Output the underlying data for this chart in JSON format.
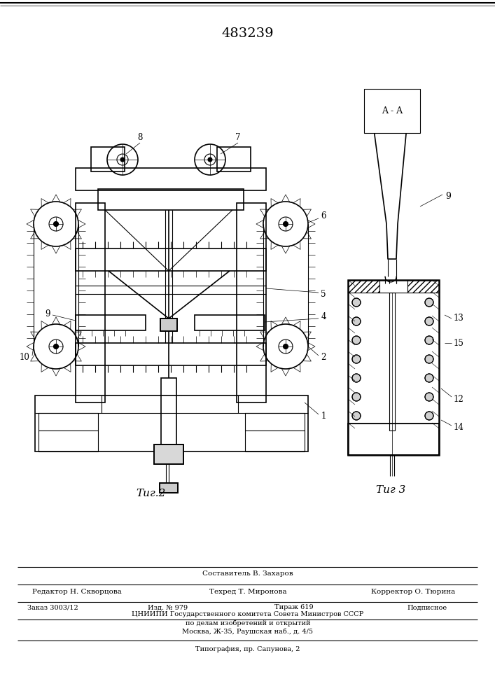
{
  "patent_number": "483239",
  "fig2_label": "Τиг.2",
  "fig3_label": "Τиг 3",
  "aa_label": "A - A",
  "footer_line1": "Составитель В. Захаров",
  "footer_line2_left": "Редактор Н. Скворцова",
  "footer_line2_mid": "Техред Т. Миронова",
  "footer_line2_right": "Корректор О. Тюрина",
  "footer_line3_1": "Заказ 3003/12",
  "footer_line3_2": "Изд. № 979",
  "footer_line3_3": "Тираж 619",
  "footer_line3_4": "Подписное",
  "footer_line4": "ЦНИИПИ Государственного комитета Совета Министров СССР",
  "footer_line5": "по делам изобретений и открытий",
  "footer_line6": "Москва, Ж-35, Раушская наб., д. 4/5",
  "footer_line7": "Типография, пр. Сапунова, 2",
  "bg_color": "#ffffff",
  "line_color": "#000000"
}
